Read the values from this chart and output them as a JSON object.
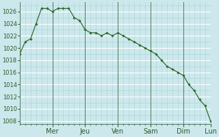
{
  "x_labels": [
    "Mer",
    "Jeu",
    "Ven",
    "Sam",
    "Dim",
    "Lun"
  ],
  "y_values": [
    1019.0,
    1021.0,
    1021.5,
    1024.0,
    1026.5,
    1026.5,
    1026.0,
    1026.5,
    1026.5,
    1026.5,
    1025.0,
    1024.5,
    1023.0,
    1022.5,
    1022.5,
    1022.0,
    1022.5,
    1022.0,
    1022.5,
    1022.0,
    1021.5,
    1021.0,
    1020.5,
    1020.0,
    1019.5,
    1019.0,
    1018.0,
    1017.0,
    1016.5,
    1016.0,
    1015.5,
    1014.0,
    1013.0,
    1011.5,
    1010.5,
    1008.0
  ],
  "ylim": [
    1007.5,
    1027.5
  ],
  "y_ticks": [
    1008,
    1010,
    1012,
    1014,
    1016,
    1018,
    1020,
    1022,
    1024,
    1026
  ],
  "line_color": "#2d6a2d",
  "marker_color": "#2d6a2d",
  "bg_color": "#cce8ec",
  "grid_major_color": "#b0d4d8",
  "grid_white_color": "#ffffff",
  "tick_label_fontsize": 6.0,
  "day_label_fontsize": 7.0,
  "n_points": 36,
  "day_tick_positions": [
    6,
    12,
    18,
    24,
    30,
    35
  ]
}
